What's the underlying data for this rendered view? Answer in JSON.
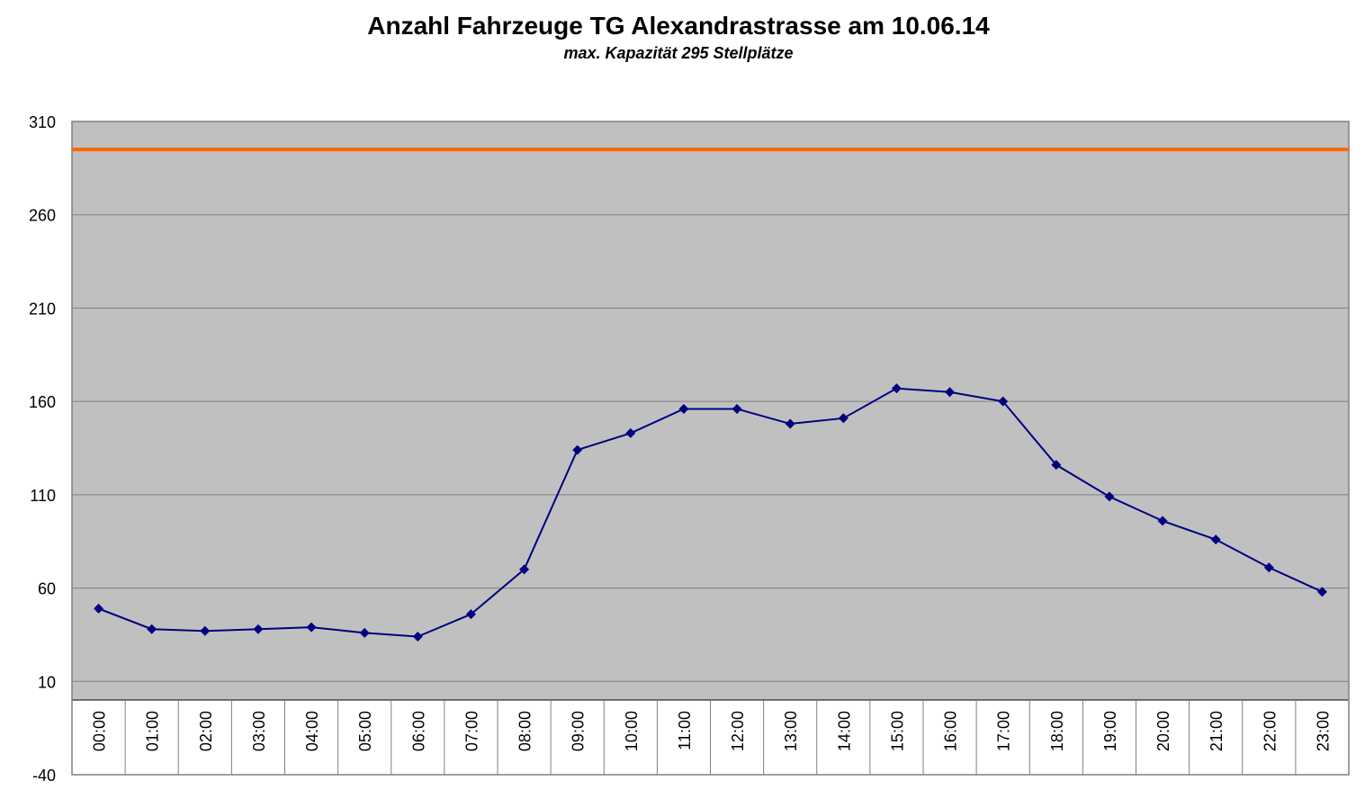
{
  "chart_data": {
    "type": "line",
    "title": "Anzahl Fahrzeuge TG Alexandrastrasse am 10.06.14",
    "subtitle": "max. Kapazität 295 Stellplätze",
    "categories": [
      "00:00",
      "01:00",
      "02:00",
      "03:00",
      "04:00",
      "05:00",
      "06:00",
      "07:00",
      "08:00",
      "09:00",
      "10:00",
      "11:00",
      "12:00",
      "13:00",
      "14:00",
      "15:00",
      "16:00",
      "17:00",
      "18:00",
      "19:00",
      "20:00",
      "21:00",
      "22:00",
      "23:00"
    ],
    "values": [
      49,
      38,
      37,
      38,
      39,
      36,
      34,
      46,
      70,
      134,
      143,
      156,
      156,
      148,
      151,
      167,
      165,
      160,
      126,
      109,
      96,
      86,
      71,
      58
    ],
    "color": "#000080",
    "capacity": 295,
    "capacity_color": "#ff6600",
    "ylim": [
      -40,
      310
    ],
    "yticks": [
      -40,
      10,
      60,
      110,
      160,
      210,
      260,
      310
    ],
    "grid": true
  }
}
